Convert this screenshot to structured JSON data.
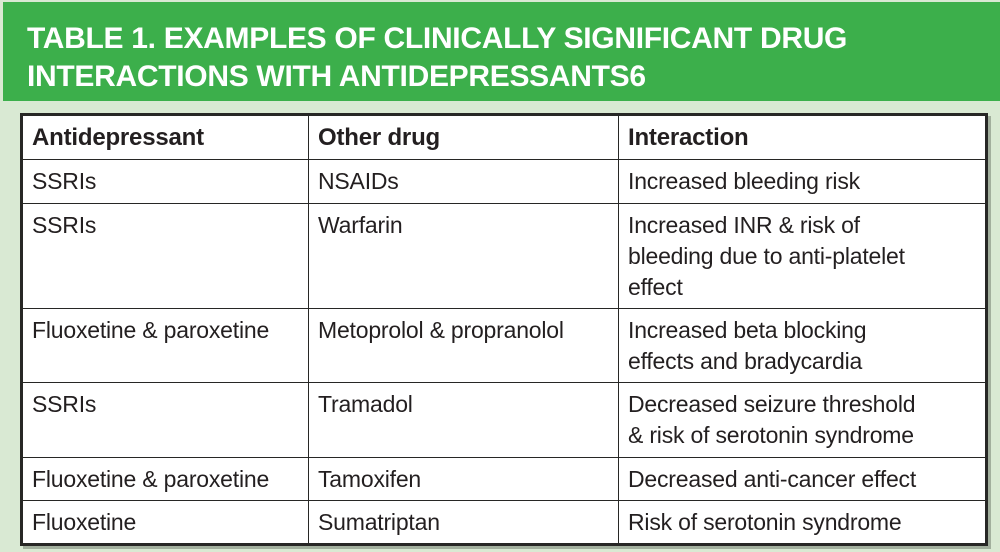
{
  "title": {
    "text": "TABLE 1. EXAMPLES OF CLINICALLY SIGNIFICANT DRUG\nINTERACTIONS WITH ANTIDEPRESSANTS6"
  },
  "colors": {
    "band_green": "#3caf4b",
    "background_green": "#d9e9d3",
    "border_dark": "#272725",
    "text_dark": "#231f20",
    "title_white": "#ffffff"
  },
  "table": {
    "headers": [
      "Antidepressant",
      "Other drug",
      "Interaction"
    ],
    "rows": [
      {
        "antidepressant": "SSRIs",
        "other_drug": "NSAIDs",
        "interaction": "Increased bleeding risk"
      },
      {
        "antidepressant": "SSRIs",
        "other_drug": "Warfarin",
        "interaction": "Increased INR & risk of\nbleeding due to anti-platelet\neffect"
      },
      {
        "antidepressant": "Fluoxetine & paroxetine",
        "other_drug": "Metoprolol & propranolol",
        "interaction": "Increased beta blocking\neffects and bradycardia"
      },
      {
        "antidepressant": "SSRIs",
        "other_drug": "Tramadol",
        "interaction": "Decreased seizure threshold\n& risk of serotonin syndrome"
      },
      {
        "antidepressant": "Fluoxetine & paroxetine",
        "other_drug": "Tamoxifen",
        "interaction": "Decreased anti-cancer effect"
      },
      {
        "antidepressant": "Fluoxetine",
        "other_drug": "Sumatriptan",
        "interaction": "Risk of serotonin syndrome"
      }
    ]
  }
}
